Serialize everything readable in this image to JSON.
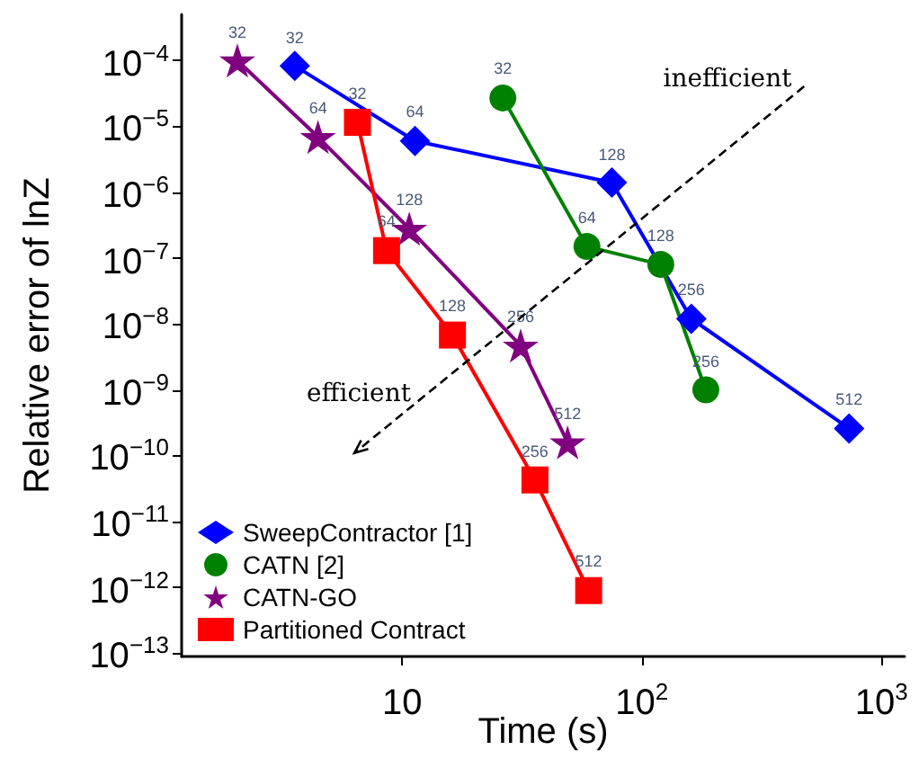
{
  "chart_data": {
    "type": "line",
    "xlabel": "Time (s)",
    "ylabel": "Relative error of lnZ",
    "log": "xy",
    "grid": false,
    "legend": "bottom left",
    "xlim": [
      1.2,
      1250
    ],
    "ylim": [
      9e-14,
      0.0005
    ],
    "xticks": [
      {
        "value": 10,
        "label": "10"
      },
      {
        "value": 100,
        "label": "10$^{2}$"
      },
      {
        "value": 1000,
        "label": "10$^{3}$"
      }
    ],
    "yticks": [
      {
        "value": 1e-13,
        "label": "10$^{−13}$"
      },
      {
        "value": 1e-12,
        "label": "10$^{−12}$"
      },
      {
        "value": 1e-11,
        "label": "10$^{−11}$"
      },
      {
        "value": 1e-10,
        "label": "10$^{−10}$"
      },
      {
        "value": 1e-09,
        "label": "10$^{−9}$"
      },
      {
        "value": 1e-08,
        "label": "10$^{−8}$"
      },
      {
        "value": 1e-07,
        "label": "10$^{−7}$"
      },
      {
        "value": 1e-06,
        "label": "10$^{−6}$"
      },
      {
        "value": 1e-05,
        "label": "10$^{−5}$"
      },
      {
        "value": 0.0001,
        "label": "10$^{−4}$"
      }
    ],
    "annotations": [
      "inefficient",
      "efficient",
      {
        "text": "32",
        "x": 3.56,
        "y": 8.3e-05
      },
      {
        "text": "64",
        "x": 11.3,
        "y": 6e-06
      },
      {
        "text": "128",
        "x": 75,
        "y": 1.4e-06
      },
      {
        "text": "256",
        "x": 161,
        "y": 1.2e-08
      },
      {
        "text": "512",
        "x": 733,
        "y": 2.6e-10
      },
      {
        "text": "32",
        "x": 26.3,
        "y": 2.7e-05
      },
      {
        "text": "64",
        "x": 59,
        "y": 1.5e-07
      },
      {
        "text": "128",
        "x": 120,
        "y": 8e-08
      },
      {
        "text": "256",
        "x": 185,
        "y": 1e-09
      },
      {
        "text": "32",
        "x": 2.05,
        "y": 0.0001
      },
      {
        "text": "64",
        "x": 4.45,
        "y": 6.9e-06
      },
      {
        "text": "128",
        "x": 10.7,
        "y": 2.8e-07
      },
      {
        "text": "256",
        "x": 31.2,
        "y": 4.7e-09
      },
      {
        "text": "512",
        "x": 49,
        "y": 1.6e-10
      },
      {
        "text": "32",
        "x": 6.5,
        "y": 1.15e-05
      },
      {
        "text": "64",
        "x": 8.6,
        "y": 1.3e-07
      },
      {
        "text": "128",
        "x": 16.2,
        "y": 6.8e-09
      },
      {
        "text": "256",
        "x": 35.8,
        "y": 4.3e-11
      },
      {
        "text": "512",
        "x": 60,
        "y": 9e-13
      }
    ],
    "series": [
      {
        "name": "SweepContractor [1]",
        "color": "#0000ff",
        "marker": "diamond",
        "x": [
          3.56,
          11.3,
          75,
          161,
          733
        ],
        "values": [
          8.3e-05,
          6e-06,
          1.4e-06,
          1.2e-08,
          2.6e-10
        ]
      },
      {
        "name": "CATN [2]",
        "color": "#008000",
        "marker": "circle",
        "x": [
          26.3,
          59,
          120,
          185
        ],
        "values": [
          2.7e-05,
          1.5e-07,
          8e-08,
          1e-09
        ]
      },
      {
        "name": "CATN-GO",
        "color": "#800080",
        "marker": "star",
        "x": [
          2.05,
          4.45,
          10.7,
          31.2,
          49
        ],
        "values": [
          0.0001,
          6.9e-06,
          2.8e-07,
          4.7e-09,
          1.6e-10
        ]
      },
      {
        "name": "Partitioned Contract",
        "color": "#ff0000",
        "marker": "square",
        "x": [
          6.5,
          8.6,
          16.2,
          35.8,
          60
        ],
        "values": [
          1.15e-05,
          1.3e-07,
          6.8e-09,
          4.3e-11,
          9e-13
        ]
      }
    ]
  }
}
